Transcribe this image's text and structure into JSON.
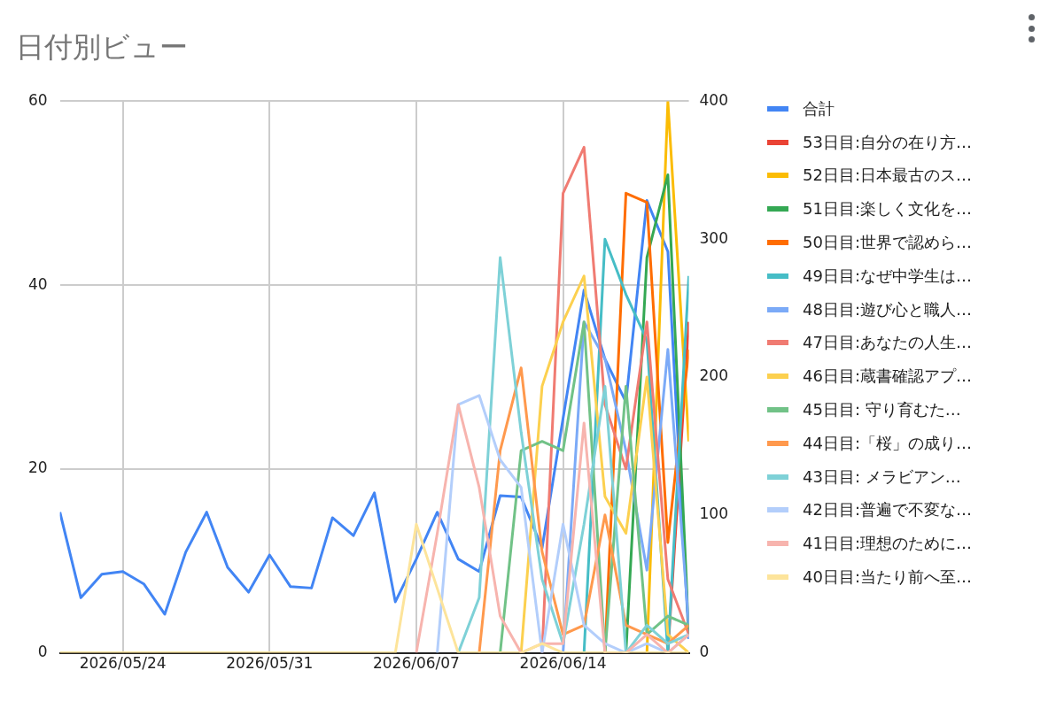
{
  "chart_data": {
    "type": "line",
    "title": "日付別ビュー",
    "x": [
      "2026-05-21",
      "2026-05-22",
      "2026-05-23",
      "2026-05-24",
      "2026-05-25",
      "2026-05-26",
      "2026-05-27",
      "2026-05-28",
      "2026-05-29",
      "2026-05-30",
      "2026-05-31",
      "2026-06-01",
      "2026-06-02",
      "2026-06-03",
      "2026-06-04",
      "2026-06-05",
      "2026-06-06",
      "2026-06-07",
      "2026-06-08",
      "2026-06-09",
      "2026-06-10",
      "2026-06-11",
      "2026-06-12",
      "2026-06-13",
      "2026-06-14",
      "2026-06-15",
      "2026-06-16",
      "2026-06-17",
      "2026-06-18",
      "2026-06-19",
      "2026-06-20"
    ],
    "xlim": [
      "2026-05-21",
      "2026-06-20"
    ],
    "xticks": [
      {
        "value": "2026-05-24",
        "label": "2026/05/24"
      },
      {
        "value": "2026-05-31",
        "label": "2026/05/31"
      },
      {
        "value": "2026-06-07",
        "label": "2026/06/07"
      },
      {
        "value": "2026-06-14",
        "label": "2026/06/14"
      }
    ],
    "ylim": [
      0,
      60
    ],
    "yticks": [
      0,
      20,
      40,
      60
    ],
    "y2lim": [
      0,
      400
    ],
    "y2ticks": [
      0,
      100,
      200,
      300,
      400
    ],
    "grid": true,
    "legend": "right",
    "series": [
      {
        "name": "合計",
        "color": "#4285f4",
        "axis": "y2",
        "values": [
          102,
          40,
          57,
          59,
          50,
          28,
          73,
          102,
          62,
          44,
          71,
          48,
          47,
          98,
          85,
          116,
          37,
          68,
          102,
          68,
          59,
          114,
          113,
          76,
          170,
          263,
          213,
          182,
          328,
          291,
          10
        ]
      },
      {
        "name": "53日目:自分の在り方…",
        "color": "#ea4335",
        "values": [
          null,
          null,
          null,
          null,
          null,
          null,
          null,
          null,
          null,
          null,
          null,
          null,
          null,
          null,
          null,
          null,
          null,
          null,
          null,
          null,
          null,
          null,
          null,
          null,
          null,
          null,
          null,
          null,
          null,
          0,
          36
        ]
      },
      {
        "name": "52日目:日本最古のス…",
        "color": "#fbbc04",
        "values": [
          null,
          null,
          null,
          null,
          null,
          null,
          null,
          null,
          null,
          null,
          null,
          null,
          null,
          null,
          null,
          null,
          null,
          null,
          null,
          null,
          null,
          null,
          null,
          null,
          null,
          null,
          null,
          null,
          0,
          60,
          23
        ]
      },
      {
        "name": "51日目:楽しく文化を…",
        "color": "#34a853",
        "values": [
          null,
          null,
          null,
          null,
          null,
          null,
          null,
          null,
          null,
          null,
          null,
          null,
          null,
          null,
          null,
          null,
          null,
          null,
          null,
          null,
          null,
          null,
          null,
          null,
          null,
          null,
          null,
          0,
          43,
          52,
          2
        ]
      },
      {
        "name": "50日目:世界で認めら…",
        "color": "#ff6d01",
        "values": [
          null,
          null,
          null,
          null,
          null,
          null,
          null,
          null,
          null,
          null,
          null,
          null,
          null,
          null,
          null,
          null,
          null,
          null,
          null,
          null,
          null,
          null,
          null,
          null,
          null,
          null,
          0,
          50,
          49,
          12,
          33
        ]
      },
      {
        "name": "49日目:なぜ中学生は…",
        "color": "#46bdc6",
        "values": [
          null,
          null,
          null,
          null,
          null,
          null,
          null,
          null,
          null,
          null,
          null,
          null,
          null,
          null,
          null,
          null,
          null,
          null,
          null,
          null,
          null,
          null,
          null,
          null,
          null,
          0,
          45,
          39,
          34,
          0,
          41
        ]
      },
      {
        "name": "48日目:遊び心と職人…",
        "color": "#7baaf7",
        "values": [
          null,
          null,
          null,
          null,
          null,
          null,
          null,
          null,
          null,
          null,
          null,
          null,
          null,
          null,
          null,
          null,
          null,
          null,
          null,
          null,
          null,
          null,
          null,
          null,
          0,
          36,
          32,
          22,
          9,
          33,
          3
        ]
      },
      {
        "name": "47日目:あなたの人生…",
        "color": "#f07b72",
        "values": [
          null,
          null,
          null,
          null,
          null,
          null,
          null,
          null,
          null,
          null,
          null,
          null,
          null,
          null,
          null,
          null,
          null,
          null,
          null,
          null,
          null,
          null,
          null,
          0,
          50,
          55,
          27,
          20,
          36,
          8,
          2
        ]
      },
      {
        "name": "46日目:蔵書確認アプ…",
        "color": "#fcd04f",
        "values": [
          null,
          null,
          null,
          null,
          null,
          null,
          null,
          null,
          null,
          null,
          null,
          null,
          null,
          null,
          null,
          null,
          null,
          null,
          null,
          null,
          null,
          null,
          0,
          29,
          36,
          41,
          17,
          13,
          30,
          2,
          0
        ]
      },
      {
        "name": "45日目: 守り育むた…",
        "color": "#71c287",
        "values": [
          null,
          null,
          null,
          null,
          null,
          null,
          null,
          null,
          null,
          null,
          null,
          null,
          null,
          null,
          null,
          null,
          null,
          null,
          null,
          null,
          null,
          0,
          22,
          23,
          22,
          36,
          0,
          29,
          2,
          4,
          3
        ]
      },
      {
        "name": "44日目:「桜」の成り…",
        "color": "#ff994d",
        "values": [
          null,
          null,
          null,
          null,
          null,
          null,
          null,
          null,
          null,
          null,
          null,
          null,
          null,
          null,
          null,
          null,
          null,
          null,
          null,
          null,
          0,
          22,
          31,
          11,
          2,
          3,
          15,
          3,
          2,
          1,
          3
        ]
      },
      {
        "name": "43日目: メラビアン…",
        "color": "#7ed1d7",
        "values": [
          null,
          null,
          null,
          null,
          null,
          null,
          null,
          null,
          null,
          null,
          null,
          null,
          null,
          null,
          null,
          null,
          null,
          null,
          null,
          0,
          6,
          43,
          24,
          8,
          1,
          14,
          29,
          0,
          3,
          1,
          2
        ]
      },
      {
        "name": "42日目:普遍で不変な…",
        "color": "#b3cefb",
        "values": [
          null,
          null,
          null,
          null,
          null,
          null,
          null,
          null,
          null,
          null,
          null,
          null,
          null,
          null,
          null,
          null,
          null,
          null,
          0,
          27,
          28,
          21,
          18,
          0,
          14,
          3,
          1,
          0,
          1,
          0,
          2
        ]
      },
      {
        "name": "41日目:理想のために…",
        "color": "#f7b4ae",
        "values": [
          null,
          null,
          null,
          null,
          null,
          null,
          null,
          null,
          null,
          null,
          null,
          null,
          null,
          null,
          null,
          null,
          null,
          0,
          13,
          27,
          18,
          4,
          0,
          1,
          1,
          25,
          0,
          0,
          2,
          0,
          2
        ]
      },
      {
        "name": "40日目:当たり前へ至…",
        "color": "#fde49b",
        "values": [
          0,
          0,
          0,
          0,
          0,
          0,
          0,
          0,
          0,
          0,
          0,
          0,
          0,
          0,
          0,
          0,
          0,
          14,
          7,
          0,
          0,
          0,
          0,
          1,
          0,
          0,
          0,
          0,
          0,
          0,
          0
        ]
      }
    ]
  }
}
